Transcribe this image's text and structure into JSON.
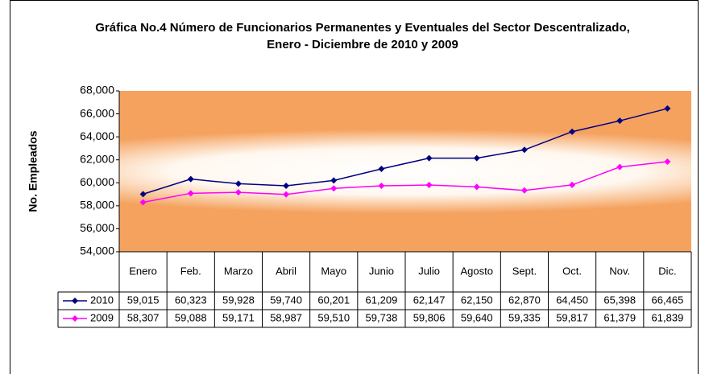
{
  "chart_data": {
    "type": "line",
    "title": "Gráfica No.4 Número de Funcionarios Permanentes y Eventuales del Sector Descentralizado, Enero - Diciembre de 2010 y 2009",
    "y_label": "No. Empleados",
    "categories": [
      "Enero",
      "Feb.",
      "Marzo",
      "Abril",
      "Mayo",
      "Junio",
      "Julio",
      "Agosto",
      "Sept.",
      "Oct.",
      "Nov.",
      "Dic."
    ],
    "series": [
      {
        "name": "2010",
        "color": "#000080",
        "values": [
          59015,
          60323,
          59928,
          59740,
          60201,
          61209,
          62147,
          62150,
          62870,
          64450,
          65398,
          66465
        ],
        "value_labels": [
          "59,015",
          "60,323",
          "59,928",
          "59,740",
          "60,201",
          "61,209",
          "62,147",
          "62,150",
          "62,870",
          "64,450",
          "65,398",
          "66,465"
        ]
      },
      {
        "name": "2009",
        "color": "#ff00ff",
        "values": [
          58307,
          59088,
          59171,
          58987,
          59510,
          59738,
          59806,
          59640,
          59335,
          59817,
          61379,
          61839
        ],
        "value_labels": [
          "58,307",
          "59,088",
          "59,171",
          "58,987",
          "59,510",
          "59,738",
          "59,806",
          "59,640",
          "59,335",
          "59,817",
          "61,379",
          "61,839"
        ]
      }
    ],
    "ylim": [
      54000,
      68000
    ],
    "yticks": [
      {
        "value": 54000,
        "label": "54,000"
      },
      {
        "value": 56000,
        "label": "56,000"
      },
      {
        "value": 58000,
        "label": "58,000"
      },
      {
        "value": 60000,
        "label": "60,000"
      },
      {
        "value": 62000,
        "label": "62,000"
      },
      {
        "value": 64000,
        "label": "64,000"
      },
      {
        "value": 66000,
        "label": "66,000"
      },
      {
        "value": 68000,
        "label": "68,000"
      }
    ],
    "grid": false
  }
}
